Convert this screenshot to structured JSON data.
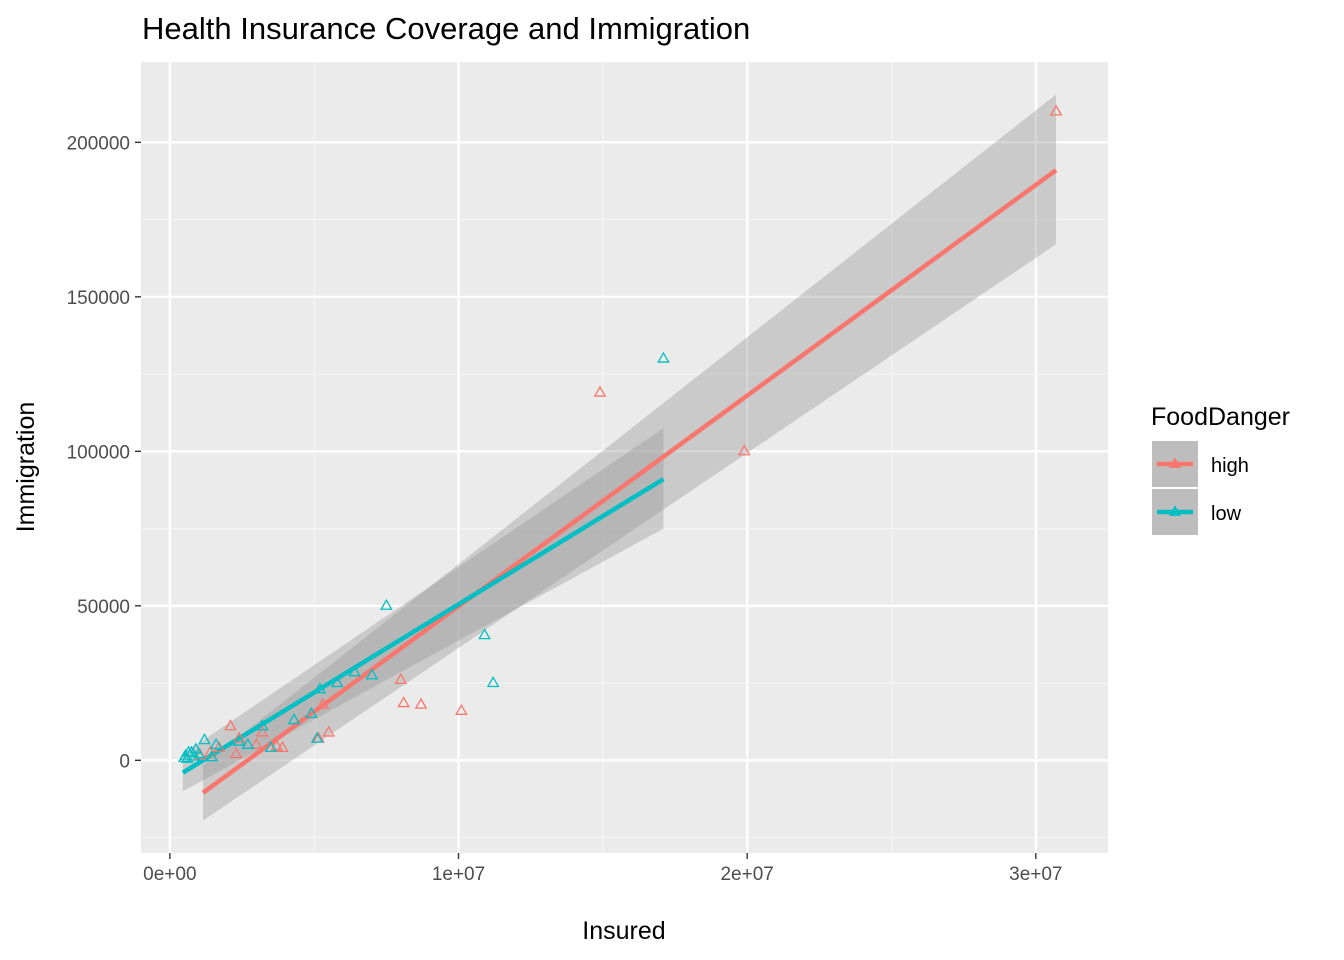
{
  "chart_data": {
    "type": "scatter",
    "title": "Health Insurance Coverage and Immigration",
    "xlabel": "Insured",
    "ylabel": "Immigration",
    "xlim": [
      -1000000,
      32500000
    ],
    "ylim": [
      -30000,
      226000
    ],
    "x_ticks": [
      0,
      10000000,
      20000000,
      30000000
    ],
    "x_tick_labels": [
      "0e+00",
      "1e+07",
      "2e+07",
      "3e+07"
    ],
    "y_ticks": [
      0,
      50000,
      100000,
      150000,
      200000
    ],
    "y_tick_labels": [
      "0",
      "50000",
      "100000",
      "150000",
      "200000"
    ],
    "grid": true,
    "legend": {
      "title": "FoodDanger",
      "position": "right",
      "entries": [
        "high",
        "low"
      ]
    },
    "series": [
      {
        "name": "high",
        "color": "#F8766D",
        "marker": "triangle-open",
        "points": [
          [
            30700000,
            210000
          ],
          [
            14900000,
            119000
          ],
          [
            19900000,
            100000
          ],
          [
            8000000,
            26000
          ],
          [
            8100000,
            18500
          ],
          [
            8700000,
            18000
          ],
          [
            10100000,
            16000
          ],
          [
            5300000,
            18000
          ],
          [
            5500000,
            9000
          ],
          [
            5150000,
            7000
          ],
          [
            2100000,
            11000
          ],
          [
            2400000,
            7000
          ],
          [
            3200000,
            9000
          ],
          [
            3000000,
            5000
          ],
          [
            3700000,
            4500
          ],
          [
            3900000,
            4000
          ],
          [
            1700000,
            4000
          ],
          [
            1400000,
            2500
          ],
          [
            2300000,
            2000
          ],
          [
            1050000,
            1500
          ]
        ],
        "fit": {
          "x_range": [
            1150000,
            30700000
          ],
          "y_start": -10500,
          "y_end": 191000,
          "band_start": [
            -19500,
            -1500
          ],
          "band_end": [
            167000,
            215500
          ]
        }
      },
      {
        "name": "low",
        "color": "#00BFC4",
        "marker": "triangle-open",
        "points": [
          [
            17100000,
            130000
          ],
          [
            7500000,
            50000
          ],
          [
            10900000,
            40500
          ],
          [
            11200000,
            25000
          ],
          [
            7000000,
            27500
          ],
          [
            6400000,
            28500
          ],
          [
            5800000,
            25000
          ],
          [
            5200000,
            23000
          ],
          [
            4900000,
            15000
          ],
          [
            4300000,
            13000
          ],
          [
            3200000,
            11000
          ],
          [
            5100000,
            7000
          ],
          [
            3500000,
            4000
          ],
          [
            2700000,
            5000
          ],
          [
            2400000,
            6000
          ],
          [
            1200000,
            6500
          ],
          [
            1600000,
            5000
          ],
          [
            1450000,
            1000
          ],
          [
            900000,
            3500
          ],
          [
            750000,
            2500
          ],
          [
            650000,
            2500
          ],
          [
            550000,
            1500
          ],
          [
            500000,
            800
          ],
          [
            600000,
            500
          ],
          [
            850000,
            1200
          ],
          [
            1000000,
            2000
          ]
        ],
        "fit": {
          "x_range": [
            450000,
            17100000
          ],
          "y_start": -4000,
          "y_end": 91000,
          "band_start": [
            -10000,
            2000
          ],
          "band_end": [
            75000,
            107500
          ]
        }
      }
    ]
  }
}
